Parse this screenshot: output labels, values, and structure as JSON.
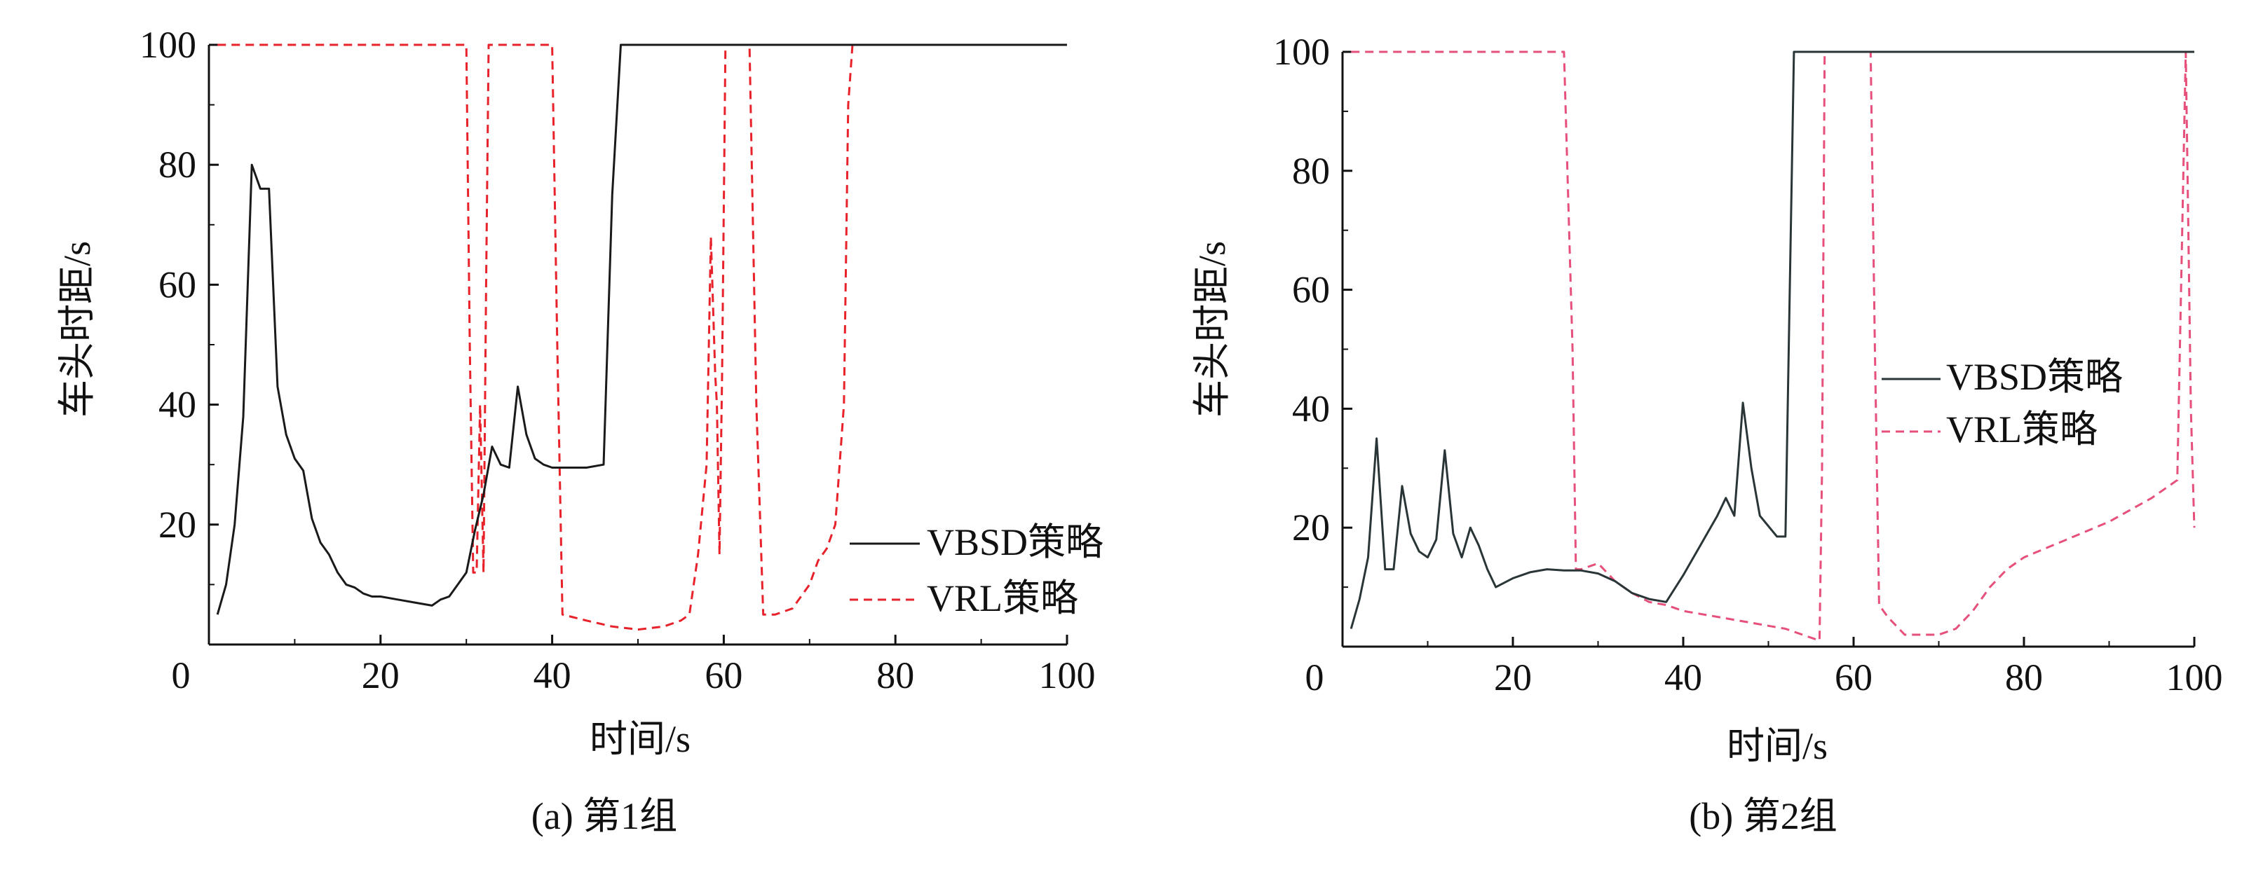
{
  "chart_data": [
    {
      "type": "line",
      "caption": "(a) 第1组",
      "xlabel": "时间/s",
      "ylabel": "车头时距/s",
      "xlim": [
        0,
        100
      ],
      "ylim": [
        0,
        100
      ],
      "x_ticks": [
        "0",
        "20",
        "40",
        "60",
        "80",
        "100"
      ],
      "y_ticks": [
        "20",
        "40",
        "60",
        "80",
        "100"
      ],
      "grid": false,
      "legend_position": "bottom-right",
      "series": [
        {
          "name": "VBSD策略",
          "color": "#1a1a1a",
          "style": "solid",
          "points": [
            [
              1,
              5
            ],
            [
              2,
              10
            ],
            [
              3,
              20
            ],
            [
              4,
              38
            ],
            [
              5,
              80
            ],
            [
              6,
              76
            ],
            [
              7,
              76
            ],
            [
              8,
              43
            ],
            [
              9,
              35
            ],
            [
              10,
              31
            ],
            [
              11,
              29
            ],
            [
              12,
              21
            ],
            [
              13,
              17
            ],
            [
              14,
              15
            ],
            [
              15,
              12
            ],
            [
              16,
              10
            ],
            [
              17,
              9.5
            ],
            [
              18,
              8.5
            ],
            [
              19,
              8
            ],
            [
              20,
              8
            ],
            [
              22,
              7.5
            ],
            [
              24,
              7
            ],
            [
              26,
              6.5
            ],
            [
              27,
              7.5
            ],
            [
              28,
              8
            ],
            [
              29,
              10
            ],
            [
              30,
              12
            ],
            [
              31,
              19
            ],
            [
              32,
              25
            ],
            [
              33,
              33
            ],
            [
              34,
              30
            ],
            [
              35,
              29.5
            ],
            [
              36,
              43
            ],
            [
              37,
              35
            ],
            [
              38,
              31
            ],
            [
              39,
              30
            ],
            [
              40,
              29.5
            ],
            [
              42,
              29.5
            ],
            [
              44,
              29.5
            ],
            [
              46,
              30
            ],
            [
              47,
              75
            ],
            [
              48,
              100
            ],
            [
              60,
              100
            ],
            [
              80,
              100
            ],
            [
              100,
              100
            ]
          ]
        },
        {
          "name": "VRL策略",
          "color": "#e8222a",
          "style": "dashed",
          "points": [
            [
              1,
              100
            ],
            [
              25,
              100
            ],
            [
              30,
              100
            ],
            [
              30.4,
              50
            ],
            [
              30.8,
              12
            ],
            [
              31.2,
              12
            ],
            [
              31.6,
              40
            ],
            [
              32,
              12
            ],
            [
              32.3,
              60
            ],
            [
              32.6,
              100
            ],
            [
              40,
              100
            ],
            [
              40.6,
              50
            ],
            [
              41.2,
              5
            ],
            [
              44,
              4
            ],
            [
              47,
              3
            ],
            [
              50,
              2.5
            ],
            [
              53,
              3
            ],
            [
              55,
              4
            ],
            [
              56,
              5
            ],
            [
              57,
              15
            ],
            [
              58,
              30
            ],
            [
              58.5,
              68
            ],
            [
              59,
              45
            ],
            [
              59.2,
              40
            ],
            [
              59.5,
              15
            ],
            [
              59.8,
              45
            ],
            [
              60.2,
              100
            ],
            [
              63,
              100
            ],
            [
              63.8,
              40
            ],
            [
              64.6,
              5
            ],
            [
              66,
              5
            ],
            [
              68,
              6
            ],
            [
              70,
              10
            ],
            [
              71,
              14
            ],
            [
              72,
              16
            ],
            [
              73,
              20
            ],
            [
              74,
              40
            ],
            [
              74.5,
              90
            ],
            [
              75,
              100
            ],
            [
              100,
              100
            ]
          ]
        }
      ]
    },
    {
      "type": "line",
      "caption": "(b) 第2组",
      "xlabel": "时间/s",
      "ylabel": "车头时距/s",
      "xlim": [
        0,
        100
      ],
      "ylim": [
        0,
        100
      ],
      "x_ticks": [
        "0",
        "20",
        "40",
        "60",
        "80",
        "100"
      ],
      "y_ticks": [
        "20",
        "40",
        "60",
        "80",
        "100"
      ],
      "grid": false,
      "legend_position": "center-right",
      "series": [
        {
          "name": "VBSD策略",
          "color": "#2a3538",
          "style": "solid",
          "points": [
            [
              1,
              3
            ],
            [
              2,
              8
            ],
            [
              3,
              15
            ],
            [
              4,
              35
            ],
            [
              5,
              13
            ],
            [
              6,
              13
            ],
            [
              7,
              27
            ],
            [
              8,
              19
            ],
            [
              9,
              16
            ],
            [
              10,
              15
            ],
            [
              11,
              18
            ],
            [
              12,
              33
            ],
            [
              13,
              19
            ],
            [
              14,
              15
            ],
            [
              15,
              20
            ],
            [
              16,
              17
            ],
            [
              17,
              13
            ],
            [
              18,
              10
            ],
            [
              20,
              11.5
            ],
            [
              22,
              12.5
            ],
            [
              24,
              13
            ],
            [
              26,
              12.8
            ],
            [
              28,
              12.8
            ],
            [
              30,
              12.3
            ],
            [
              32,
              11
            ],
            [
              34,
              9
            ],
            [
              36,
              8
            ],
            [
              38,
              7.5
            ],
            [
              40,
              12
            ],
            [
              42,
              17
            ],
            [
              44,
              22
            ],
            [
              45,
              25
            ],
            [
              46,
              22
            ],
            [
              47,
              41
            ],
            [
              48,
              30
            ],
            [
              49,
              22
            ],
            [
              51,
              18.5
            ],
            [
              52,
              18.5
            ],
            [
              53,
              100
            ],
            [
              60,
              100
            ],
            [
              80,
              100
            ],
            [
              100,
              100
            ]
          ]
        },
        {
          "name": "VRL策略",
          "color": "#e6507a",
          "style": "dashed",
          "points": [
            [
              1,
              100
            ],
            [
              15,
              100
            ],
            [
              26,
              100
            ],
            [
              27,
              50
            ],
            [
              27.4,
              13
            ],
            [
              28,
              13
            ],
            [
              30,
              14
            ],
            [
              32,
              11
            ],
            [
              34,
              9
            ],
            [
              36,
              7.5
            ],
            [
              38,
              7
            ],
            [
              40,
              6
            ],
            [
              42,
              5.5
            ],
            [
              44,
              5
            ],
            [
              46,
              4.5
            ],
            [
              48,
              4
            ],
            [
              50,
              3.5
            ],
            [
              52,
              3
            ],
            [
              54,
              2
            ],
            [
              56,
              1
            ],
            [
              56.3,
              30
            ],
            [
              56.6,
              100
            ],
            [
              62,
              100
            ],
            [
              62.5,
              50
            ],
            [
              63,
              7
            ],
            [
              64,
              5
            ],
            [
              66,
              2
            ],
            [
              70,
              2
            ],
            [
              72,
              3
            ],
            [
              74,
              6
            ],
            [
              76,
              10
            ],
            [
              78,
              13
            ],
            [
              80,
              15
            ],
            [
              85,
              18
            ],
            [
              90,
              21
            ],
            [
              95,
              25
            ],
            [
              98,
              28
            ],
            [
              99,
              100
            ],
            [
              99.3,
              70
            ],
            [
              99.6,
              40
            ],
            [
              100,
              20
            ]
          ]
        }
      ]
    }
  ]
}
